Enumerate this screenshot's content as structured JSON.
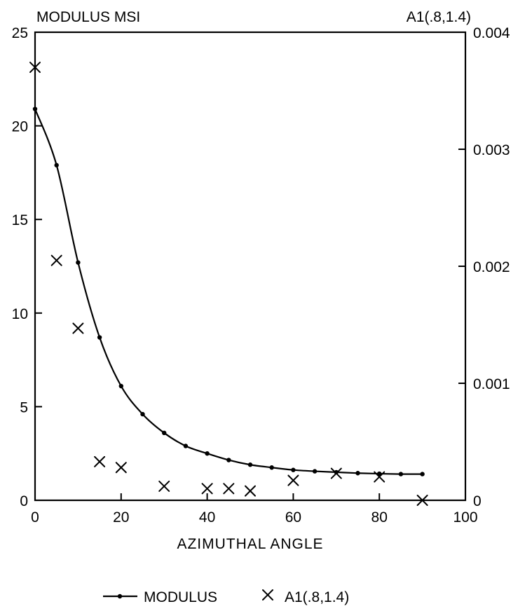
{
  "chart_data": {
    "type": "line",
    "left_axis_title": "MODULUS MSI",
    "right_axis_title": "A1(.8,1.4)",
    "xlabel": "AZIMUTHAL ANGLE",
    "xlim": [
      0,
      100
    ],
    "ylim_left": [
      0,
      25
    ],
    "ylim_right": [
      0,
      0.004
    ],
    "x_ticks": [
      "0",
      "20",
      "40",
      "60",
      "80",
      "100"
    ],
    "y_ticks_left": [
      "0",
      "5",
      "10",
      "15",
      "20",
      "25"
    ],
    "y_ticks_right": [
      "0",
      "0.001",
      "0.002",
      "0.003",
      "0.004"
    ],
    "grid": false,
    "legend_position": "bottom",
    "series": [
      {
        "name": "MODULUS",
        "axis": "left",
        "marker": "dot",
        "x": [
          0,
          5,
          10,
          15,
          20,
          25,
          30,
          35,
          40,
          45,
          50,
          55,
          60,
          65,
          70,
          75,
          80,
          85,
          90
        ],
        "y": [
          20.9,
          17.9,
          12.7,
          8.7,
          6.1,
          4.6,
          3.6,
          2.9,
          2.5,
          2.15,
          1.9,
          1.75,
          1.62,
          1.55,
          1.5,
          1.45,
          1.42,
          1.4,
          1.4
        ]
      },
      {
        "name": "A1(.8,1.4)",
        "axis": "right",
        "marker": "x",
        "x": [
          0,
          5,
          10,
          15,
          20,
          30,
          40,
          45,
          50,
          60,
          70,
          80,
          90
        ],
        "y": [
          0.0037,
          0.00205,
          0.00147,
          0.00033,
          0.00028,
          0.00012,
          0.0001,
          0.0001,
          8e-05,
          0.00017,
          0.00023,
          0.0002,
          0.0
        ]
      }
    ]
  }
}
